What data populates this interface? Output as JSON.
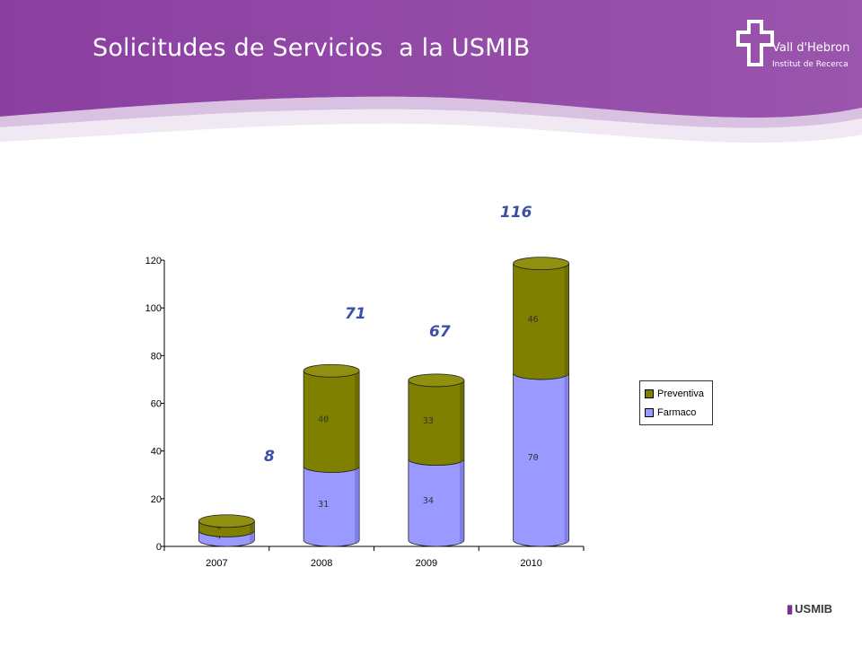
{
  "slide": {
    "title": "Solicitudes de Servicios  a la USMIB",
    "logo_line1": "Vall d'Hebron",
    "logo_line2": "Institut de Recerca",
    "footer_badge": "USMIB",
    "header_color": "#8a3f9f",
    "header_light": "#b07ac4"
  },
  "chart_data": {
    "type": "bar",
    "stacked": true,
    "style": "3d-cylinder",
    "categories": [
      "2007",
      "2008",
      "2009",
      "2010"
    ],
    "series": [
      {
        "name": "Farmaco",
        "values": [
          4,
          31,
          34,
          70
        ],
        "color": "#9999ff"
      },
      {
        "name": "Preventiva",
        "values": [
          4,
          40,
          33,
          46
        ],
        "color": "#808000"
      }
    ],
    "totals": [
      "8",
      "71",
      "67",
      "116"
    ],
    "ylim": [
      0,
      120
    ],
    "yticks": [
      "0",
      "20",
      "40",
      "60",
      "80",
      "100",
      "120"
    ],
    "legend_position": "right",
    "grid": false
  }
}
